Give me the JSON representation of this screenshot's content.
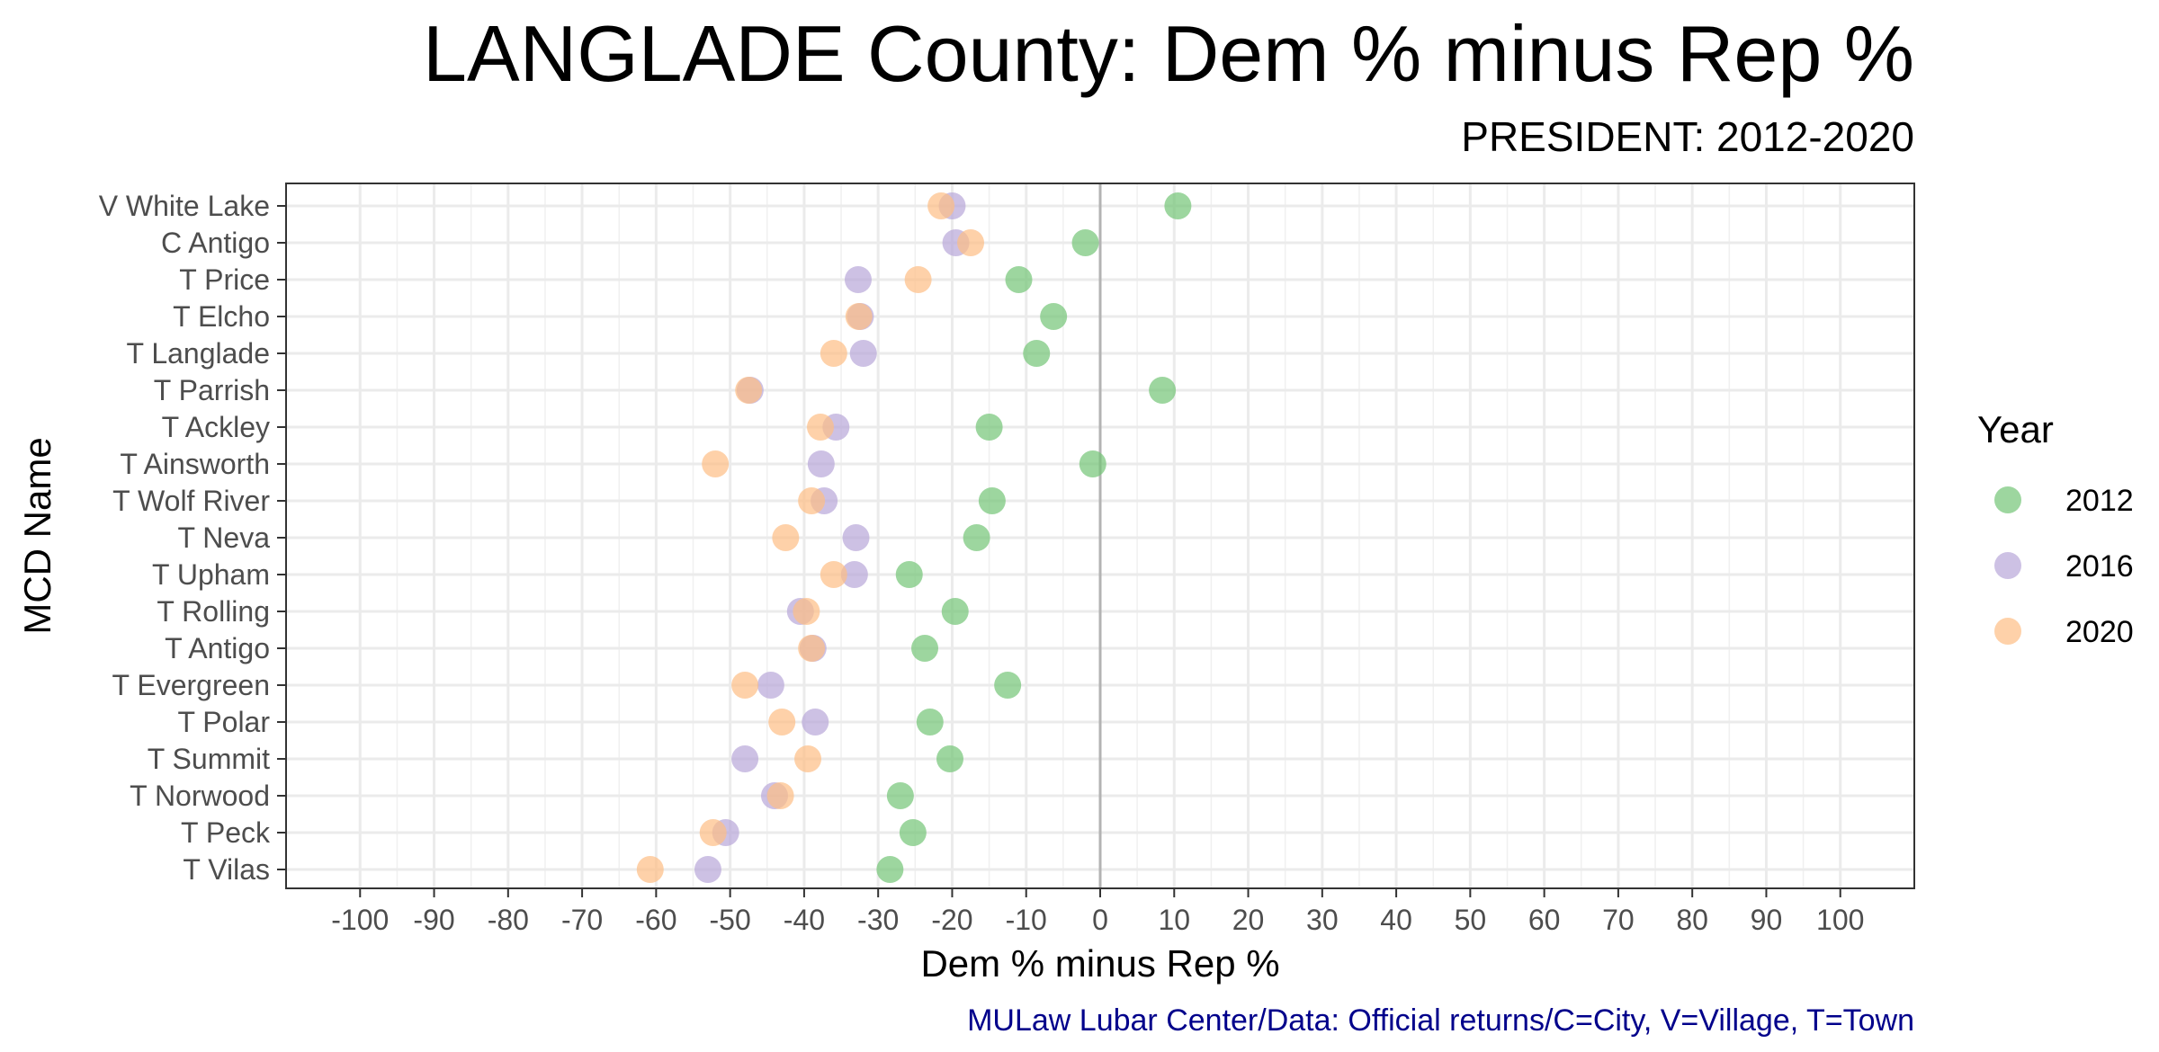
{
  "chart_data": {
    "type": "scatter",
    "title": "LANGLADE County: Dem % minus Rep %",
    "subtitle": "PRESIDENT: 2012-2020",
    "xlabel": "Dem % minus Rep %",
    "ylabel": "MCD Name",
    "caption": "MULaw Lubar Center/Data: Official returns/C=City, V=Village, T=Town",
    "xlim": [
      -110,
      110
    ],
    "xticks": [
      -100,
      -90,
      -80,
      -70,
      -60,
      -50,
      -40,
      -30,
      -20,
      -10,
      0,
      10,
      20,
      30,
      40,
      50,
      60,
      70,
      80,
      90,
      100
    ],
    "reference_line_x": 0,
    "grid": true,
    "legend": {
      "title": "Year",
      "position": "right"
    },
    "categories": [
      "V White Lake",
      "C Antigo",
      "T Price",
      "T Elcho",
      "T Langlade",
      "T Parrish",
      "T Ackley",
      "T Ainsworth",
      "T Wolf River",
      "T Neva",
      "T Upham",
      "T Rolling",
      "T Antigo",
      "T Evergreen",
      "T Polar",
      "T Summit",
      "T Norwood",
      "T Peck",
      "T Vilas"
    ],
    "series": [
      {
        "name": "2012",
        "color": "#74c476",
        "values": [
          10.5,
          -2,
          -11,
          -6.3,
          -8.6,
          8.4,
          -15,
          -1,
          -14.6,
          -16.7,
          -25.8,
          -19.6,
          -23.7,
          -12.5,
          -23,
          -20.3,
          -27,
          -25.3,
          -28.4
        ]
      },
      {
        "name": "2016",
        "color": "#b8a6d9",
        "values": [
          -20,
          -19.5,
          -32.7,
          -32.4,
          -32,
          -47.3,
          -35.7,
          -37.7,
          -37.3,
          -33,
          -33.2,
          -40.5,
          -38.8,
          -44.5,
          -38.5,
          -48,
          -44,
          -50.6,
          -53
        ]
      },
      {
        "name": "2020",
        "color": "#fdbe85",
        "values": [
          -21.5,
          -17.5,
          -24.6,
          -32.6,
          -36,
          -47.5,
          -37.8,
          -52,
          -39,
          -42.5,
          -36,
          -39.7,
          -39,
          -48,
          -43,
          -39.5,
          -43.2,
          -52.3,
          -60.8
        ]
      }
    ]
  }
}
